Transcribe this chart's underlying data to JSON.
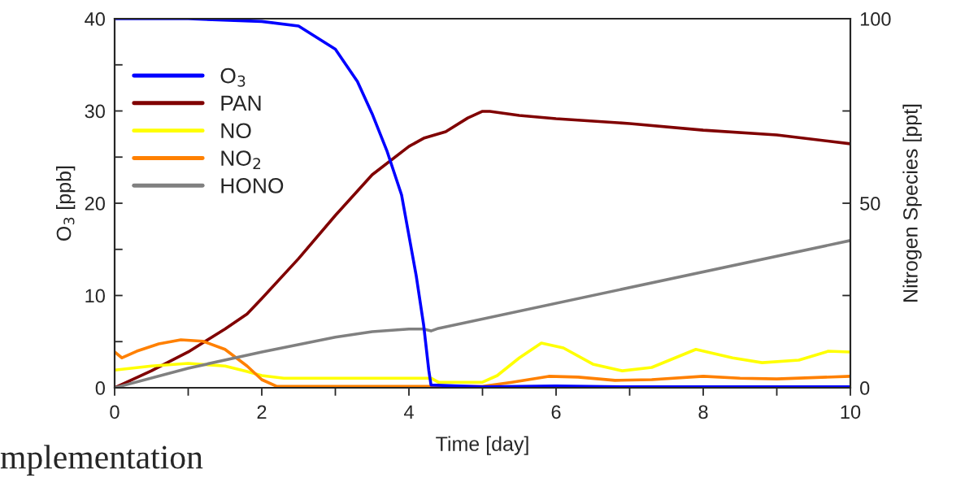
{
  "chart_data": {
    "type": "line",
    "xlabel": "Time [day]",
    "ylabel": "O$_{3}$ [ppb]",
    "y2label": "Nitrogen Species [ppt]",
    "xlim": [
      0,
      10
    ],
    "xticks": [
      0,
      {
        "value": 1,
        "label": null
      },
      2,
      {
        "value": 3,
        "label": null
      },
      4,
      {
        "value": 5,
        "label": null
      },
      6,
      {
        "value": 7,
        "label": null
      },
      8,
      {
        "value": 9,
        "label": null
      },
      10
    ],
    "ylim": [
      0,
      40
    ],
    "yticks": [
      0,
      {
        "value": 5,
        "label": null
      },
      10,
      {
        "value": 15,
        "label": null
      },
      20,
      {
        "value": 25,
        "label": null
      },
      30,
      {
        "value": 35,
        "label": null
      },
      40
    ],
    "y2lim": [
      0,
      100
    ],
    "y2ticks": [
      0,
      {
        "value": 25,
        "label": null
      },
      50,
      {
        "value": 75,
        "label": null
      },
      100
    ],
    "grid": false,
    "legend": "top left",
    "line_style": "solid",
    "marker": "none",
    "annotations": [
      "mplementation"
    ],
    "series": [
      {
        "name": "O$_{3}$",
        "color": "#0000ff",
        "x": [
          0,
          1,
          2,
          2.5,
          3,
          3.3,
          3.5,
          3.7,
          3.9,
          4.0,
          4.1,
          4.2,
          4.27,
          4.3,
          5,
          6,
          7,
          8,
          9,
          10
        ],
        "values": [
          40,
          40,
          39.7,
          39.2,
          36.7,
          33.2,
          29.7,
          25.7,
          20.9,
          16.5,
          12.1,
          6.8,
          1.9,
          0.3,
          0.1,
          0.2,
          0.1,
          0.1,
          0.1,
          0.1
        ]
      },
      {
        "name": "PAN",
        "color": "#800000",
        "axis": "y2",
        "x": [
          0,
          0.5,
          1,
          1.5,
          1.8,
          2,
          2.5,
          3,
          3.5,
          4,
          4.2,
          4.5,
          4.8,
          5,
          5.1,
          5.5,
          6,
          7,
          8,
          9,
          10
        ],
        "values": [
          0,
          4.6,
          9.7,
          15.9,
          20,
          24.2,
          35,
          46.7,
          57.7,
          65.4,
          67.6,
          69.4,
          73.1,
          74.9,
          74.9,
          73.8,
          72.9,
          71.6,
          69.8,
          68.5,
          66.1
        ]
      },
      {
        "name": "NO",
        "color": "#ffff00",
        "axis": "y2",
        "x": [
          0,
          0.5,
          1,
          1.5,
          1.8,
          2,
          2.3,
          4.3,
          4.4,
          5,
          5.2,
          5.5,
          5.8,
          6.1,
          6.5,
          6.9,
          7.3,
          7.9,
          8.4,
          8.8,
          9.3,
          9.7,
          10
        ],
        "values": [
          4.8,
          5.9,
          6.6,
          5.9,
          4.4,
          3.3,
          2.6,
          2.6,
          1.5,
          1.5,
          3.3,
          8.1,
          12.1,
          10.8,
          6.4,
          4.6,
          5.5,
          10.4,
          8.1,
          6.8,
          7.5,
          9.9,
          9.7
        ]
      },
      {
        "name": "NO$_{2}$",
        "color": "#ff8000",
        "axis": "y2",
        "x": [
          0,
          0.1,
          0.3,
          0.6,
          0.9,
          1.2,
          1.5,
          1.8,
          2,
          2.2,
          5,
          5.4,
          5.9,
          6.3,
          6.8,
          7.3,
          8.0,
          8.5,
          9,
          10
        ],
        "values": [
          9.7,
          8.1,
          9.9,
          11.9,
          13.0,
          12.6,
          10.4,
          5.9,
          2.2,
          0.4,
          0.4,
          1.5,
          3.1,
          2.9,
          2.0,
          2.2,
          3.1,
          2.6,
          2.4,
          3.1
        ]
      },
      {
        "name": "HONO",
        "color": "#808080",
        "axis": "y2",
        "x": [
          0,
          1,
          2,
          3,
          3.5,
          4,
          4.2,
          4.3,
          4.4,
          10
        ],
        "values": [
          0,
          5.3,
          9.7,
          13.7,
          15.2,
          15.9,
          15.9,
          15.4,
          16.1,
          39.9
        ]
      }
    ]
  }
}
